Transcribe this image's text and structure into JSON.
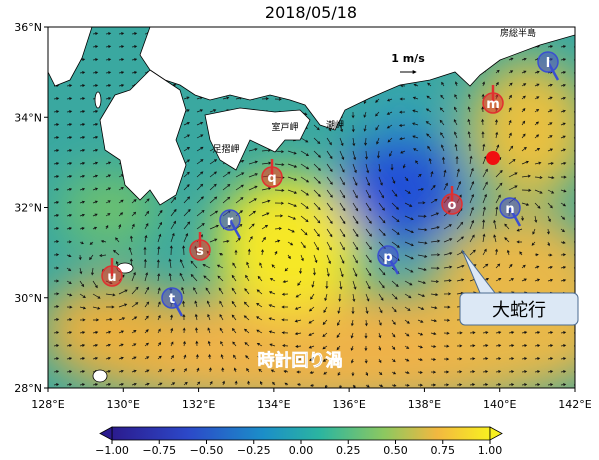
{
  "map": {
    "title": "2018/05/18",
    "lonlim": [
      128,
      142
    ],
    "latlim": [
      28,
      36
    ],
    "lon_ticks": [
      {
        "value": 128,
        "label": "128°E"
      },
      {
        "value": 130,
        "label": "130°E"
      },
      {
        "value": 132,
        "label": "132°E"
      },
      {
        "value": 134,
        "label": "134°E"
      },
      {
        "value": 136,
        "label": "136°E"
      },
      {
        "value": 138,
        "label": "138°E"
      },
      {
        "value": 140,
        "label": "140°E"
      },
      {
        "value": 142,
        "label": "142°E"
      }
    ],
    "lat_ticks": [
      {
        "value": 28,
        "label": "28°N"
      },
      {
        "value": 30,
        "label": "30°N"
      },
      {
        "value": 32,
        "label": "32°N"
      },
      {
        "value": 34,
        "label": "34°N"
      },
      {
        "value": 36,
        "label": "36°N"
      }
    ],
    "colorbar_lim": [
      -1,
      1
    ],
    "colorbar_ticks": [
      {
        "value": -1,
        "label": "−1.00"
      },
      {
        "value": -0.75,
        "label": "−0.75"
      },
      {
        "value": -0.5,
        "label": "−0.50"
      },
      {
        "value": -0.25,
        "label": "−0.25"
      },
      {
        "value": 0,
        "label": "0.00"
      },
      {
        "value": 0.25,
        "label": "0.25"
      },
      {
        "value": 0.5,
        "label": "0.50"
      },
      {
        "value": 0.75,
        "label": "0.75"
      },
      {
        "value": 1,
        "label": "1.00"
      }
    ],
    "scale_label": "1 m/s",
    "places": [
      "足摺岬",
      "室戸岬",
      "潮岬",
      "房総半島"
    ],
    "markers": [
      {
        "label": "u",
        "color": "#e03030"
      },
      {
        "label": "t",
        "color": "#3a4fd0"
      },
      {
        "label": "s",
        "color": "#e03030"
      },
      {
        "label": "r",
        "color": "#3a4fd0"
      },
      {
        "label": "q",
        "color": "#e03030"
      },
      {
        "label": "p",
        "color": "#3a4fd0"
      },
      {
        "label": "o",
        "color": "#e03030"
      },
      {
        "label": "n",
        "color": "#3a4fd0"
      },
      {
        "label": "m",
        "color": "#e03030"
      },
      {
        "label": "l",
        "color": "#3a4fd0"
      }
    ],
    "callout": "大蛇行",
    "eddy_label": "時計回り渦"
  }
}
